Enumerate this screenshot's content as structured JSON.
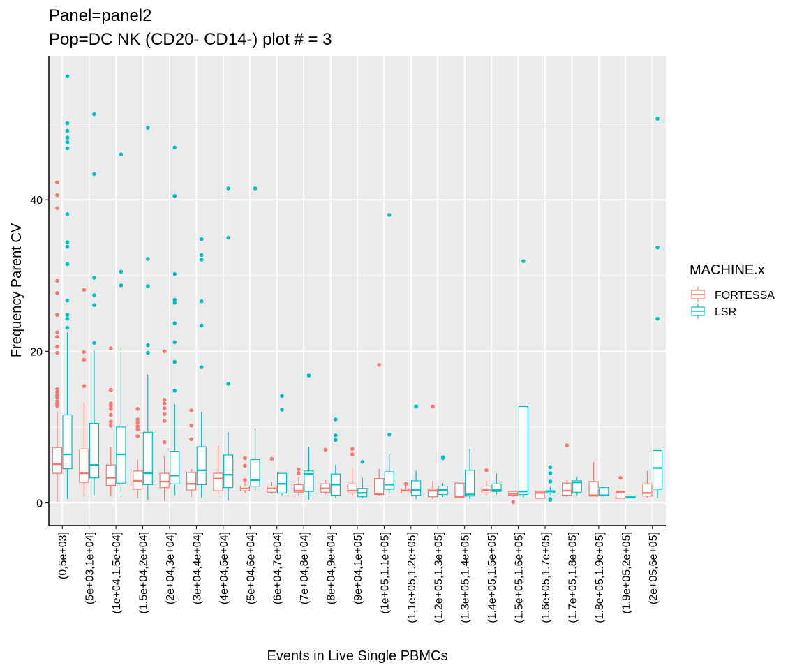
{
  "chart_data": {
    "type": "boxplot",
    "title": "Panel=panel2",
    "subtitle": "Pop=DC NK (CD20- CD14-) plot # = 3",
    "xlabel": "Events in Live Single PBMCs",
    "ylabel": "Frequency Parent CV",
    "ylim": [
      -3,
      59
    ],
    "yticks": [
      0,
      20,
      40
    ],
    "grid": true,
    "legend_title": "MACHINE.x",
    "legend_position": "right",
    "categories": [
      "(0,5e+03]",
      "(5e+03,1e+04]",
      "(1e+04,1.5e+04]",
      "(1.5e+04,2e+04]",
      "(2e+04,3e+04]",
      "(3e+04,4e+04]",
      "(4e+04,5e+04]",
      "(5e+04,6e+04]",
      "(6e+04,7e+04]",
      "(7e+04,8e+04]",
      "(8e+04,9e+04]",
      "(9e+04,1e+05]",
      "(1e+05,1.1e+05]",
      "(1.1e+05,1.2e+05]",
      "(1.2e+05,1.3e+05]",
      "(1.3e+05,1.4e+05]",
      "(1.4e+05,1.5e+05]",
      "(1.5e+05,1.6e+05]",
      "(1.6e+05,1.7e+05]",
      "(1.7e+05,1.8e+05]",
      "(1.8e+05,1.9e+05]",
      "(1.9e+05,2e+05]",
      "(2e+05,6e+05]"
    ],
    "series": [
      {
        "name": "FORTESSA",
        "color": "#F8766D",
        "boxes": [
          {
            "min": 0.1,
            "q1": 3.9,
            "median": 5.1,
            "q3": 7.3,
            "max": 12.0,
            "outliers": [
              12.8,
              13.1,
              13.4,
              13.9,
              14.2,
              14.6,
              15.0,
              19.8,
              20.6,
              21.9,
              22.5,
              24.8,
              27.7,
              29.3,
              38.9,
              40.6,
              42.3
            ]
          },
          {
            "min": 0.9,
            "q1": 2.7,
            "median": 3.9,
            "q3": 7.1,
            "max": 13.2,
            "outliers": [
              15.4,
              18.9,
              19.9,
              28.1
            ]
          },
          {
            "min": 0.9,
            "q1": 2.3,
            "median": 3.3,
            "q3": 5.0,
            "max": 7.4,
            "outliers": [
              10.2,
              10.7,
              11.6,
              12.4,
              12.8,
              13.1,
              14.9,
              20.4
            ]
          },
          {
            "min": 0.6,
            "q1": 1.8,
            "median": 2.9,
            "q3": 4.2,
            "max": 5.7,
            "outliers": [
              8.8,
              9.7,
              10.1,
              10.6,
              11.0,
              12.4
            ]
          },
          {
            "min": 0.3,
            "q1": 2.0,
            "median": 2.8,
            "q3": 3.9,
            "max": 6.2,
            "outliers": [
              8.0,
              10.8,
              11.7,
              12.5,
              13.1,
              13.6,
              20.0
            ]
          },
          {
            "min": 0.8,
            "q1": 1.7,
            "median": 2.5,
            "q3": 4.0,
            "max": 4.5,
            "outliers": [
              8.4,
              10.2,
              12.2
            ]
          },
          {
            "min": 1.1,
            "q1": 1.6,
            "median": 3.2,
            "q3": 3.9,
            "max": 7.6,
            "outliers": []
          },
          {
            "min": 1.3,
            "q1": 1.6,
            "median": 1.9,
            "q3": 2.2,
            "max": 2.7,
            "outliers": [
              3.0,
              4.9,
              5.9
            ]
          },
          {
            "min": 1.2,
            "q1": 1.4,
            "median": 1.9,
            "q3": 2.2,
            "max": 2.7,
            "outliers": [
              5.8
            ]
          },
          {
            "min": 0.9,
            "q1": 1.4,
            "median": 1.6,
            "q3": 2.4,
            "max": 3.4,
            "outliers": [
              3.9,
              4.4
            ]
          },
          {
            "min": 1.1,
            "q1": 1.4,
            "median": 1.9,
            "q3": 2.5,
            "max": 3.0,
            "outliers": [
              7.0
            ]
          },
          {
            "min": 0.9,
            "q1": 1.3,
            "median": 1.6,
            "q3": 2.5,
            "max": 4.5,
            "outliers": [
              6.4,
              7.1
            ]
          },
          {
            "min": 0.9,
            "q1": 1.1,
            "median": 1.2,
            "q3": 3.2,
            "max": 4.5,
            "outliers": [
              18.2
            ]
          },
          {
            "min": 1.2,
            "q1": 1.3,
            "median": 1.6,
            "q3": 1.8,
            "max": 2.2,
            "outliers": [
              2.5
            ]
          },
          {
            "min": 0.5,
            "q1": 0.8,
            "median": 1.6,
            "q3": 1.8,
            "max": 2.9,
            "outliers": [
              12.7
            ]
          },
          {
            "min": 0.6,
            "q1": 0.7,
            "median": 0.8,
            "q3": 2.6,
            "max": 2.7,
            "outliers": []
          },
          {
            "min": 1.0,
            "q1": 1.3,
            "median": 1.7,
            "q3": 2.2,
            "max": 2.9,
            "outliers": [
              4.3
            ]
          },
          {
            "min": 0.8,
            "q1": 1.0,
            "median": 1.2,
            "q3": 1.5,
            "max": 1.6,
            "outliers": [
              0.1
            ]
          },
          {
            "min": 0.5,
            "q1": 0.6,
            "median": 1.3,
            "q3": 1.5,
            "max": 1.6,
            "outliers": []
          },
          {
            "min": 0.8,
            "q1": 1.0,
            "median": 1.6,
            "q3": 2.6,
            "max": 3.0,
            "outliers": [
              7.6
            ]
          },
          {
            "min": 0.8,
            "q1": 0.9,
            "median": 1.0,
            "q3": 2.8,
            "max": 5.4,
            "outliers": []
          },
          {
            "min": 0.5,
            "q1": 0.6,
            "median": 1.4,
            "q3": 1.5,
            "max": 1.6,
            "outliers": [
              3.3
            ]
          },
          {
            "min": 0.7,
            "q1": 0.9,
            "median": 1.3,
            "q3": 2.5,
            "max": 4.2,
            "outliers": []
          }
        ]
      },
      {
        "name": "LSR",
        "color": "#00BFC4",
        "boxes": [
          {
            "min": 0.5,
            "q1": 4.5,
            "median": 6.4,
            "q3": 11.6,
            "max": 22.5,
            "outliers": [
              23.1,
              24.3,
              24.8,
              26.7,
              31.5,
              33.8,
              34.4,
              38.1,
              46.8,
              47.6,
              48.2,
              49.1,
              50.1,
              56.3
            ]
          },
          {
            "min": 1.0,
            "q1": 3.3,
            "median": 5.0,
            "q3": 10.5,
            "max": 20.1,
            "outliers": [
              21.1,
              26.1,
              27.4,
              29.7,
              43.4,
              51.3
            ]
          },
          {
            "min": 1.3,
            "q1": 2.6,
            "median": 6.4,
            "q3": 10.0,
            "max": 20.4,
            "outliers": [
              28.7,
              30.5,
              46.0
            ]
          },
          {
            "min": 0.4,
            "q1": 2.4,
            "median": 3.9,
            "q3": 9.3,
            "max": 16.9,
            "outliers": [
              19.8,
              20.8,
              28.6,
              32.2,
              49.5
            ]
          },
          {
            "min": 1.0,
            "q1": 2.5,
            "median": 3.6,
            "q3": 6.8,
            "max": 13.0,
            "outliers": [
              14.8,
              18.6,
              21.2,
              23.7,
              26.4,
              26.8,
              30.2,
              40.5,
              46.9
            ]
          },
          {
            "min": 0.7,
            "q1": 2.4,
            "median": 4.3,
            "q3": 7.4,
            "max": 12.0,
            "outliers": [
              17.9,
              23.4,
              26.6,
              32.1,
              32.7,
              34.8
            ]
          },
          {
            "min": 0.3,
            "q1": 2.0,
            "median": 3.7,
            "q3": 6.3,
            "max": 9.3,
            "outliers": [
              15.7,
              35.0,
              41.5
            ]
          },
          {
            "min": 1.5,
            "q1": 2.2,
            "median": 3.0,
            "q3": 5.7,
            "max": 9.8,
            "outliers": [
              41.5
            ]
          },
          {
            "min": 1.0,
            "q1": 1.3,
            "median": 2.5,
            "q3": 3.9,
            "max": 3.9,
            "outliers": [
              12.3,
              14.1
            ]
          },
          {
            "min": 0.4,
            "q1": 1.5,
            "median": 3.8,
            "q3": 4.2,
            "max": 7.4,
            "outliers": [
              16.8
            ]
          },
          {
            "min": 0.6,
            "q1": 1.0,
            "median": 2.4,
            "q3": 3.8,
            "max": 5.0,
            "outliers": [
              8.3,
              8.9,
              11.0
            ]
          },
          {
            "min": 0.6,
            "q1": 0.8,
            "median": 1.3,
            "q3": 1.9,
            "max": 3.3,
            "outliers": [
              5.4
            ]
          },
          {
            "min": 1.2,
            "q1": 1.8,
            "median": 2.4,
            "q3": 4.1,
            "max": 6.5,
            "outliers": [
              9.0,
              38.0
            ]
          },
          {
            "min": 0.5,
            "q1": 1.0,
            "median": 1.7,
            "q3": 2.9,
            "max": 4.2,
            "outliers": [
              12.7
            ]
          },
          {
            "min": 0.8,
            "q1": 1.1,
            "median": 1.7,
            "q3": 2.2,
            "max": 2.6,
            "outliers": [
              5.9,
              6.0
            ]
          },
          {
            "min": 0.5,
            "q1": 0.9,
            "median": 1.1,
            "q3": 4.3,
            "max": 7.1,
            "outliers": []
          },
          {
            "min": 1.1,
            "q1": 1.5,
            "median": 1.7,
            "q3": 2.5,
            "max": 3.9,
            "outliers": []
          },
          {
            "min": 0.7,
            "q1": 1.1,
            "median": 1.5,
            "q3": 12.7,
            "max": 12.7,
            "outliers": [
              31.9
            ]
          },
          {
            "min": 1.1,
            "q1": 1.3,
            "median": 1.5,
            "q3": 1.6,
            "max": 2.1,
            "outliers": [
              0.4,
              0.5,
              2.8,
              3.9,
              4.7
            ]
          },
          {
            "min": 1.0,
            "q1": 1.4,
            "median": 2.7,
            "q3": 2.9,
            "max": 3.4,
            "outliers": []
          },
          {
            "min": 0.8,
            "q1": 1.0,
            "median": 1.0,
            "q3": 2.0,
            "max": 2.1,
            "outliers": []
          },
          {
            "min": 0.7,
            "q1": 0.7,
            "median": 0.7,
            "q3": 0.8,
            "max": 0.8,
            "outliers": []
          },
          {
            "min": 0.6,
            "q1": 1.8,
            "median": 4.6,
            "q3": 6.9,
            "max": 6.9,
            "outliers": [
              24.3,
              33.7,
              50.7
            ]
          }
        ]
      }
    ]
  }
}
